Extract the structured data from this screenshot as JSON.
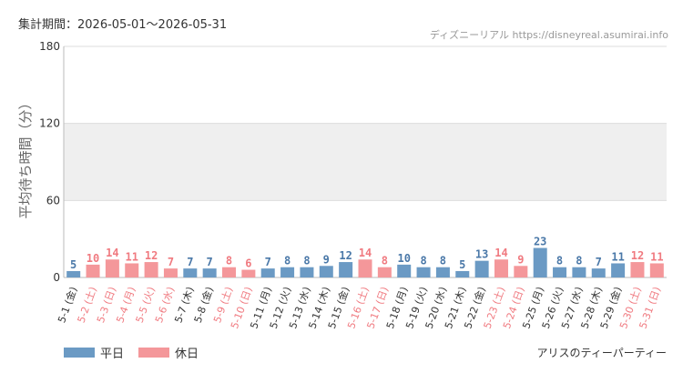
{
  "header": {
    "period": "集計期間：2026-05-01〜2026-05-31",
    "source": "ディズニーリアル https://disneyreal.asumirai.info"
  },
  "legend": {
    "weekday": "平日",
    "holiday": "休日"
  },
  "footer": {
    "attraction": "アリスのティーパーティー"
  },
  "colors": {
    "weekday": "#6b9ac4",
    "holiday": "#f4979a",
    "weekday_text": "#4a78a8",
    "holiday_text": "#f07a80",
    "band": "#efefef",
    "grid": "#dddddd",
    "axis_text": "#333333"
  },
  "chart_data": {
    "type": "bar",
    "ylabel": "平均待ち時間（分）",
    "ylim": [
      0,
      180
    ],
    "yticks": [
      0,
      60,
      120,
      180
    ],
    "shaded_band": [
      60,
      120
    ],
    "categories": [
      "5-1 (金)",
      "5-2 (土)",
      "5-3 (日)",
      "5-4 (月)",
      "5-5 (火)",
      "5-6 (水)",
      "5-7 (木)",
      "5-8 (金)",
      "5-9 (土)",
      "5-10 (日)",
      "5-11 (月)",
      "5-12 (火)",
      "5-13 (水)",
      "5-14 (木)",
      "5-15 (金)",
      "5-16 (土)",
      "5-17 (日)",
      "5-18 (月)",
      "5-19 (火)",
      "5-20 (水)",
      "5-21 (木)",
      "5-22 (金)",
      "5-23 (土)",
      "5-24 (日)",
      "5-25 (月)",
      "5-26 (火)",
      "5-27 (水)",
      "5-28 (木)",
      "5-29 (金)",
      "5-30 (土)",
      "5-31 (日)"
    ],
    "values": [
      5,
      10,
      14,
      11,
      12,
      7,
      7,
      7,
      8,
      6,
      7,
      8,
      8,
      9,
      12,
      14,
      8,
      10,
      8,
      8,
      5,
      13,
      14,
      9,
      23,
      8,
      8,
      7,
      11,
      12,
      11
    ],
    "day_type": [
      "weekday",
      "holiday",
      "holiday",
      "holiday",
      "holiday",
      "holiday",
      "weekday",
      "weekday",
      "holiday",
      "holiday",
      "weekday",
      "weekday",
      "weekday",
      "weekday",
      "weekday",
      "holiday",
      "holiday",
      "weekday",
      "weekday",
      "weekday",
      "weekday",
      "weekday",
      "holiday",
      "holiday",
      "weekday",
      "weekday",
      "weekday",
      "weekday",
      "weekday",
      "holiday",
      "holiday"
    ]
  }
}
